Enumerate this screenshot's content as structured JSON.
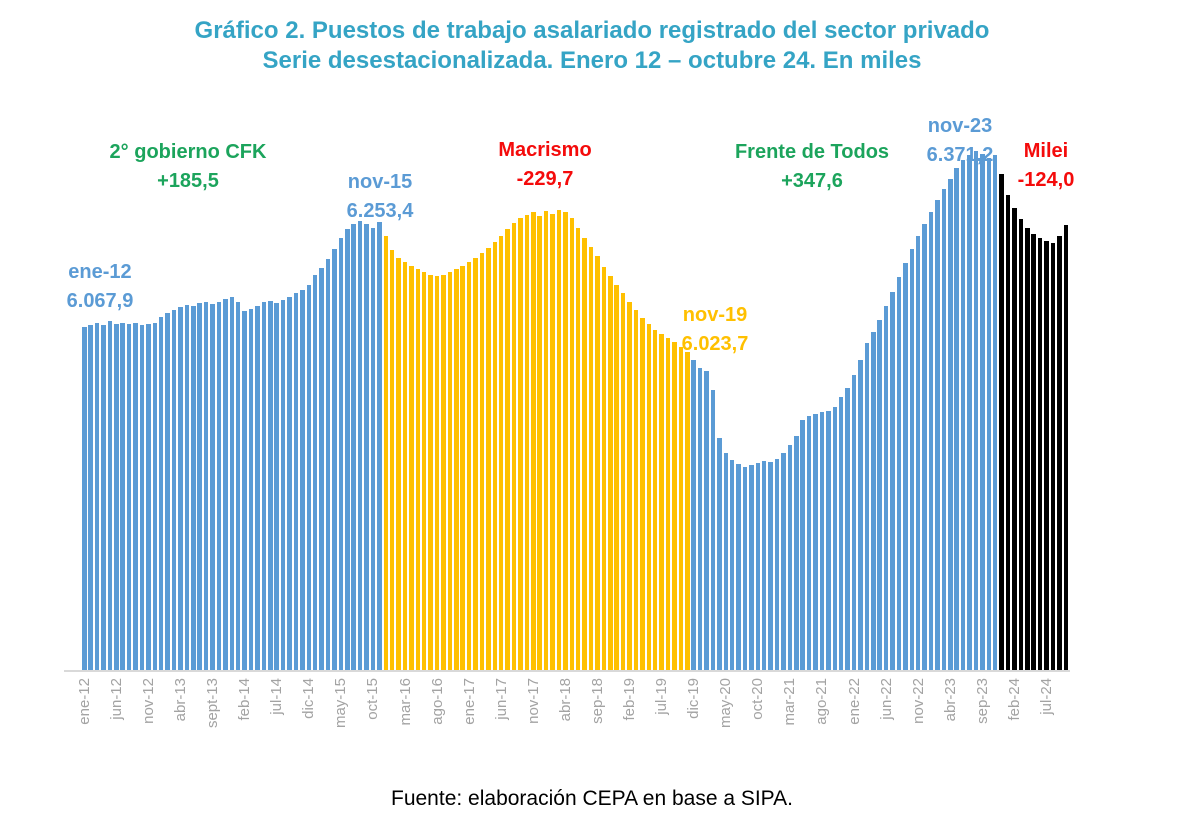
{
  "title": {
    "line1": "Gráfico 2. Puestos de trabajo asalariado registrado del sector privado",
    "line2": "Serie desestacionalizada. Enero 12 – octubre 24. En miles"
  },
  "source": "Fuente: elaboración CEPA en base a SIPA.",
  "colors": {
    "title_teal": "#35A4C5",
    "bar_blue": "#5B9BD5",
    "bar_gold": "#FFC000",
    "bar_black": "#000000",
    "text_green": "#1CA45C",
    "text_red": "#F40B0B",
    "tick_gray": "#A3A3A3",
    "axis_line": "#D9D9D9"
  },
  "annotations": [
    {
      "id": "ene12",
      "line1": "ene-12",
      "line2": "6.067,9",
      "color_key": "bar_blue"
    },
    {
      "id": "cfk",
      "line1": "2° gobierno CFK",
      "line2": "+185,5",
      "color_key": "text_green"
    },
    {
      "id": "nov15",
      "line1": "nov-15",
      "line2": "6.253,4",
      "color_key": "bar_blue"
    },
    {
      "id": "macrismo",
      "line1": "Macrismo",
      "line2": "-229,7",
      "color_key": "text_red"
    },
    {
      "id": "nov19",
      "line1": "nov-19",
      "line2": "6.023,7",
      "color_key": "bar_gold"
    },
    {
      "id": "fdt",
      "line1": "Frente de Todos",
      "line2": "+347,6",
      "color_key": "text_green"
    },
    {
      "id": "nov23",
      "line1": "nov-23",
      "line2": "6.371,2",
      "color_key": "bar_blue"
    },
    {
      "id": "milei",
      "line1": "Milei",
      "line2": "-124,0",
      "color_key": "text_red"
    }
  ],
  "chart_data": {
    "type": "bar",
    "title": "Puestos de trabajo asalariado registrado del sector privado. Serie desestacionalizada. Enero 12 – octubre 24. En miles",
    "x_start": "ene-12",
    "x_end": "oct-24",
    "tick_every_months": 5,
    "x_tick_labels": [
      "ene-12",
      "jun-12",
      "nov-12",
      "abr-13",
      "sept-13",
      "feb-14",
      "jul-14",
      "dic-14",
      "may-15",
      "oct-15",
      "mar-16",
      "ago-16",
      "ene-17",
      "jun-17",
      "nov-17",
      "abr-18",
      "sep-18",
      "feb-19",
      "jul-19",
      "dic-19",
      "may-20",
      "oct-20",
      "mar-21",
      "ago-21",
      "ene-22",
      "jun-22",
      "nov-22",
      "abr-23",
      "sep-23",
      "feb-24",
      "jul-24"
    ],
    "ylim": [
      5460,
      6420
    ],
    "grid": false,
    "legend": "none",
    "key_points": [
      {
        "label": "ene-12",
        "value": 6067.9
      },
      {
        "label": "nov-15",
        "value": 6253.4
      },
      {
        "label": "nov-19",
        "value": 6023.7
      },
      {
        "label": "nov-23",
        "value": 6371.2
      },
      {
        "label": "oct-24",
        "value": 6247.2
      }
    ],
    "periods": [
      {
        "name": "2° gobierno CFK",
        "change_label": "+185,5",
        "from_index": 0,
        "to_index": 46,
        "color_key": "bar_blue"
      },
      {
        "name": "Macrismo",
        "change_label": "-229,7",
        "from_index": 47,
        "to_index": 94,
        "color_key": "bar_gold"
      },
      {
        "name": "Frente de Todos",
        "change_label": "+347,6",
        "from_index": 95,
        "to_index": 142,
        "color_key": "bar_blue"
      },
      {
        "name": "Milei",
        "change_label": "-124,0",
        "from_index": 143,
        "to_index": 153,
        "color_key": "bar_black"
      }
    ],
    "series": [
      {
        "name": "Puestos de trabajo asalariado registrado (en miles)",
        "values": [
          6067.9,
          6071,
          6074,
          6070,
          6078,
          6073,
          6075,
          6073,
          6074,
          6071,
          6072,
          6075,
          6085,
          6092,
          6098,
          6103,
          6107,
          6105,
          6109,
          6112,
          6108,
          6112,
          6116,
          6120,
          6112,
          6095,
          6099,
          6105,
          6112,
          6113,
          6110,
          6115,
          6121,
          6128,
          6133,
          6142,
          6160,
          6172,
          6187,
          6205,
          6225,
          6240,
          6250,
          6255,
          6250,
          6242,
          6253.4,
          6228,
          6203,
          6190,
          6182,
          6176,
          6170,
          6164,
          6160,
          6158,
          6160,
          6164,
          6169,
          6175,
          6182,
          6190,
          6198,
          6207,
          6217,
          6228,
          6240,
          6252,
          6260,
          6266,
          6270,
          6264,
          6272,
          6268,
          6274,
          6270,
          6260,
          6242,
          6225,
          6208,
          6192,
          6174,
          6157,
          6142,
          6127,
          6112,
          6097,
          6084,
          6072,
          6062,
          6054,
          6047,
          6040,
          6032,
          6023.7,
          6008,
          5995,
          5990,
          5955,
          5870,
          5845,
          5832,
          5824,
          5820,
          5823,
          5826,
          5830,
          5828,
          5834,
          5845,
          5858,
          5875,
          5902,
          5910,
          5914,
          5916,
          5919,
          5926,
          5943,
          5960,
          5983,
          6008,
          6038,
          6058,
          6080,
          6105,
          6130,
          6155,
          6180,
          6205,
          6228,
          6250,
          6270,
          6292,
          6312,
          6330,
          6348,
          6362,
          6372,
          6378,
          6374,
          6366,
          6371.2,
          6338,
          6300,
          6278,
          6258,
          6242,
          6232,
          6224,
          6219,
          6216,
          6228,
          6247.2
        ]
      }
    ]
  }
}
